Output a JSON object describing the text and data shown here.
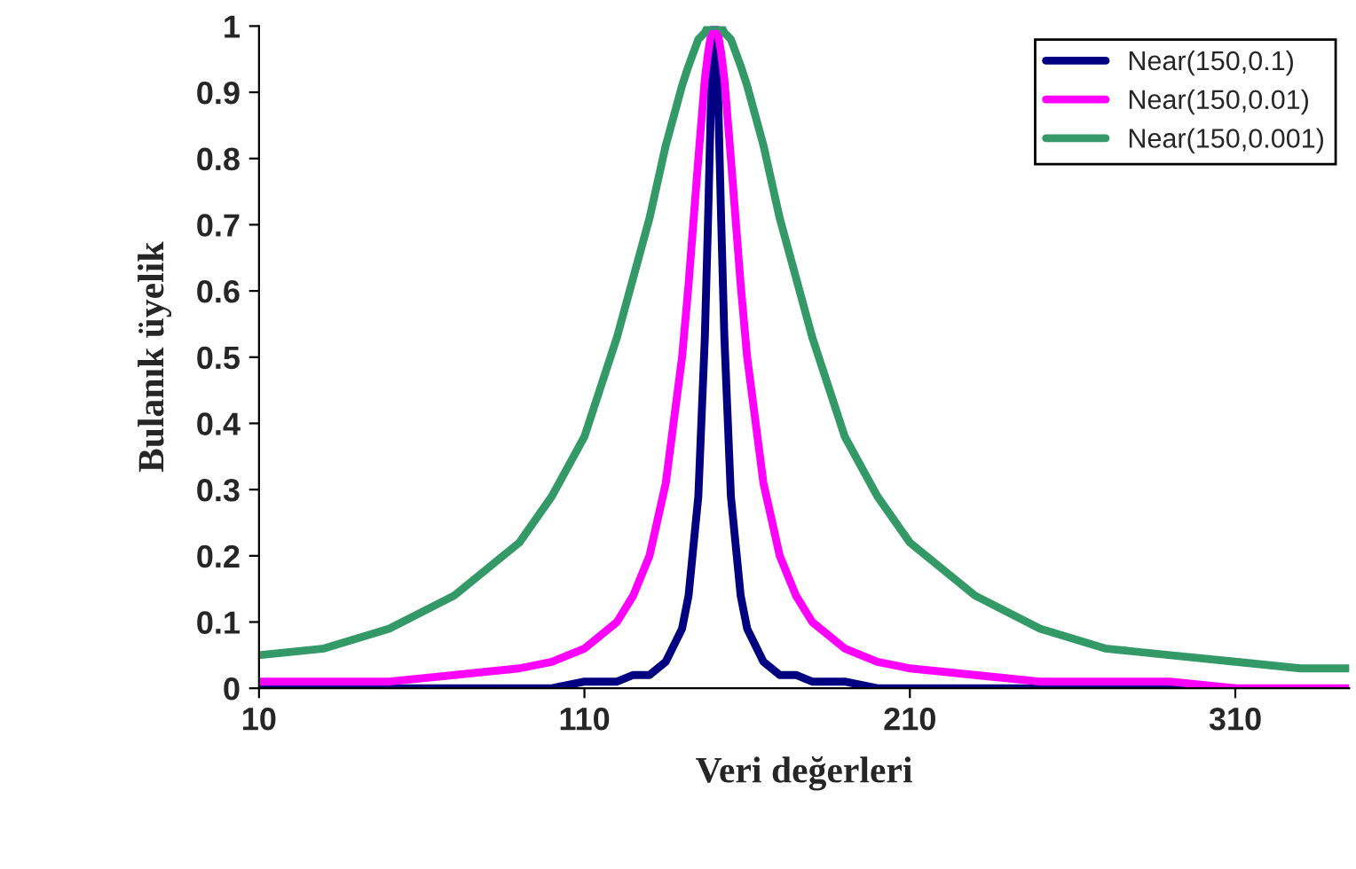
{
  "chart_data": {
    "type": "line",
    "xlabel": "Veri değerleri",
    "ylabel": "Bulanık üyelik",
    "x": [
      10,
      30,
      50,
      70,
      90,
      100,
      110,
      120,
      125,
      130,
      135,
      140,
      142,
      145,
      147,
      148,
      149,
      150,
      151,
      152,
      153,
      155,
      158,
      160,
      165,
      170,
      175,
      180,
      190,
      200,
      210,
      230,
      250,
      270,
      290,
      310,
      330,
      345
    ],
    "series": [
      {
        "name": "Near(150,0.1)",
        "color": "#000080",
        "values": [
          0,
          0,
          0,
          0,
          0,
          0,
          0.01,
          0.01,
          0.02,
          0.02,
          0.04,
          0.09,
          0.14,
          0.29,
          0.53,
          0.71,
          0.91,
          1,
          0.91,
          0.71,
          0.53,
          0.29,
          0.14,
          0.09,
          0.04,
          0.02,
          0.02,
          0.01,
          0.01,
          0,
          0,
          0,
          0,
          0,
          0,
          0,
          null,
          null
        ]
      },
      {
        "name": "Near(150,0.01)",
        "color": "#ff00ff",
        "values": [
          0.01,
          0.01,
          0.01,
          0.02,
          0.03,
          0.04,
          0.06,
          0.1,
          0.14,
          0.2,
          0.31,
          0.5,
          0.61,
          0.8,
          0.92,
          0.96,
          0.99,
          1,
          0.99,
          0.96,
          0.92,
          0.8,
          0.61,
          0.5,
          0.31,
          0.2,
          0.14,
          0.1,
          0.06,
          0.04,
          0.03,
          0.02,
          0.01,
          0.01,
          0.01,
          0,
          0,
          0
        ]
      },
      {
        "name": "Near(150,0.001)",
        "color": "#339966",
        "values": [
          0.05,
          0.06,
          0.09,
          0.14,
          0.22,
          0.29,
          0.38,
          0.53,
          0.62,
          0.71,
          0.82,
          0.91,
          0.94,
          0.98,
          0.99,
          1,
          1,
          1,
          1,
          1,
          0.99,
          0.98,
          0.94,
          0.91,
          0.82,
          0.71,
          0.62,
          0.53,
          0.38,
          0.29,
          0.22,
          0.14,
          0.09,
          0.06,
          0.05,
          0.04,
          0.03,
          0.03
        ]
      }
    ],
    "xlim": [
      10,
      345
    ],
    "xticks": [
      10,
      110,
      210,
      310
    ],
    "ylim": [
      0,
      1
    ],
    "yticks": [
      0,
      0.1,
      0.2,
      0.3,
      0.4,
      0.5,
      0.6,
      0.7,
      0.8,
      0.9,
      1
    ],
    "grid": false,
    "legend": "top right",
    "marker": "none",
    "line_style": "solid"
  }
}
